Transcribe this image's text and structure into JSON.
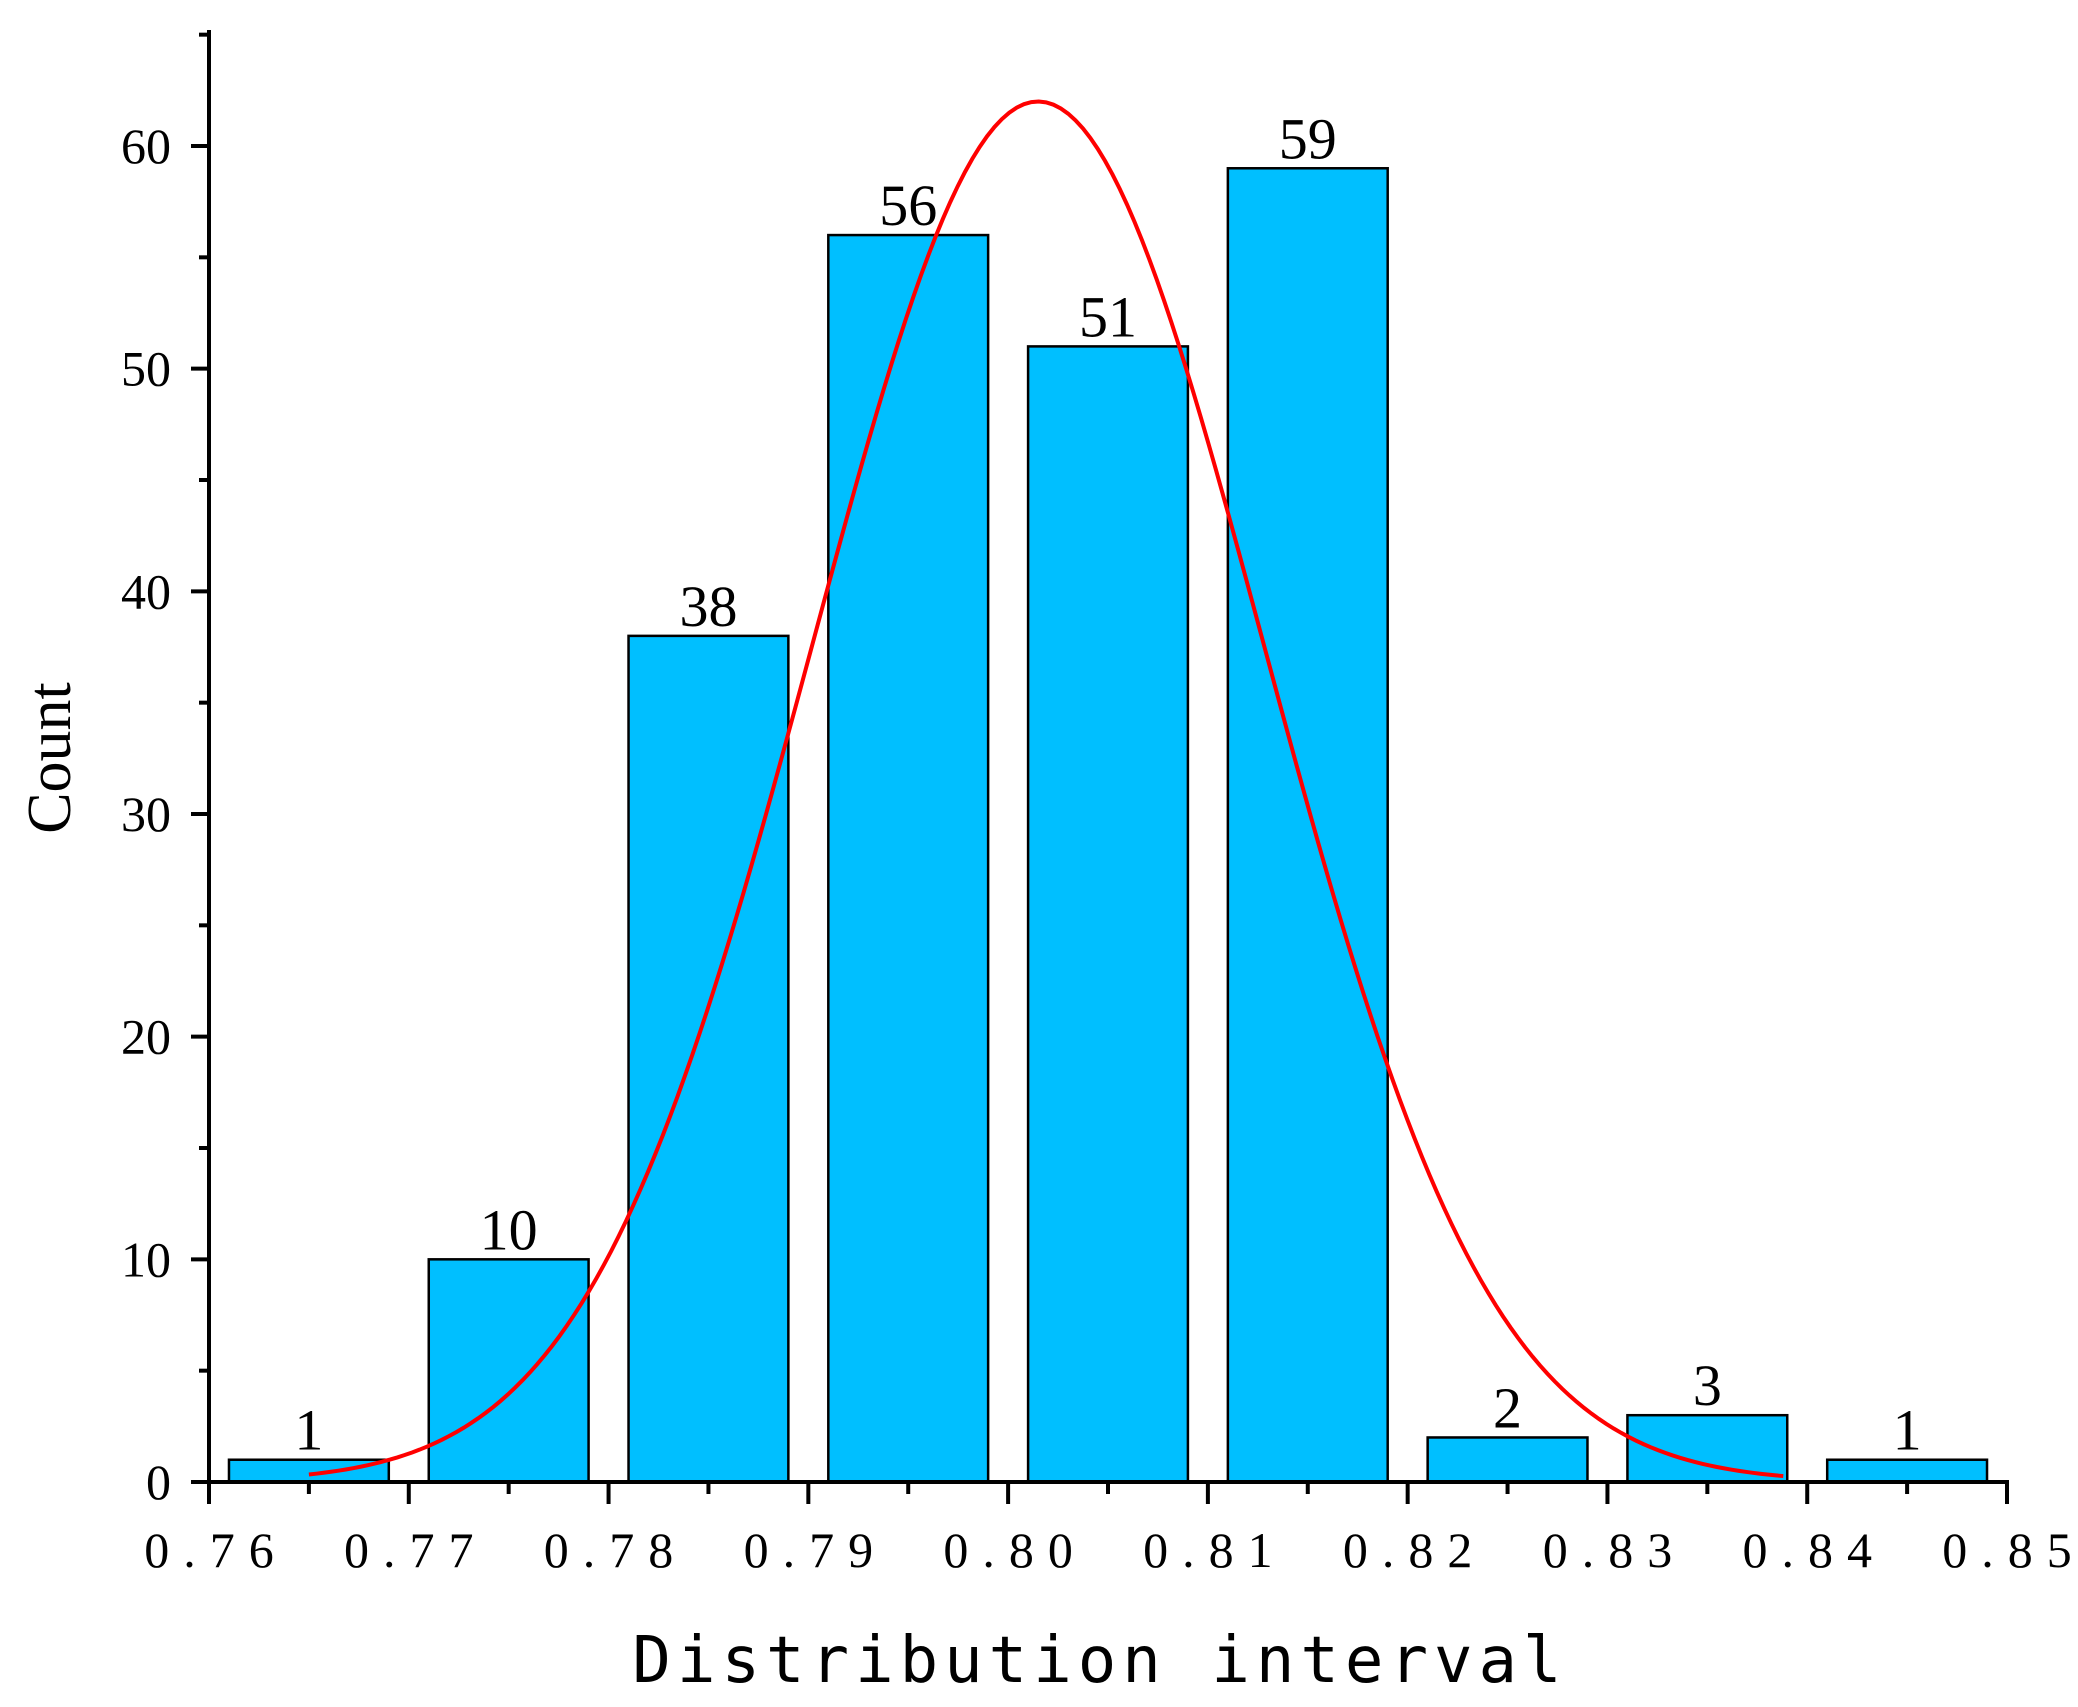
{
  "chart_data": {
    "type": "bar",
    "title": "",
    "xlabel": "Distribution interval",
    "ylabel": "Count",
    "x_ticks": [
      "0.76",
      "0.77",
      "0.78",
      "0.79",
      "0.80",
      "0.81",
      "0.82",
      "0.83",
      "0.84",
      "0.85"
    ],
    "x_tick_values": [
      0.76,
      0.77,
      0.78,
      0.79,
      0.8,
      0.81,
      0.82,
      0.83,
      0.84,
      0.85
    ],
    "y_ticks": [
      "0",
      "10",
      "20",
      "30",
      "40",
      "50",
      "60"
    ],
    "y_tick_values": [
      0,
      10,
      20,
      30,
      40,
      50,
      60
    ],
    "xlim": [
      0.76,
      0.85
    ],
    "ylim": [
      0,
      65
    ],
    "bins": [
      {
        "start": 0.76,
        "end": 0.77,
        "value": 1,
        "label": "1"
      },
      {
        "start": 0.77,
        "end": 0.78,
        "value": 10,
        "label": "10"
      },
      {
        "start": 0.78,
        "end": 0.79,
        "value": 38,
        "label": "38"
      },
      {
        "start": 0.79,
        "end": 0.8,
        "value": 56,
        "label": "56"
      },
      {
        "start": 0.8,
        "end": 0.81,
        "value": 51,
        "label": "51"
      },
      {
        "start": 0.81,
        "end": 0.82,
        "value": 59,
        "label": "59"
      },
      {
        "start": 0.82,
        "end": 0.83,
        "value": 2,
        "label": "2"
      },
      {
        "start": 0.83,
        "end": 0.84,
        "value": 3,
        "label": "3"
      },
      {
        "start": 0.84,
        "end": 0.85,
        "value": 1,
        "label": "1"
      }
    ],
    "bar_width_fraction": 0.8,
    "fit_curve": {
      "type": "normal",
      "peak": 62,
      "mean": 0.8015,
      "sd": 0.0113,
      "x_start": 0.765,
      "x_end": 0.8388
    },
    "colors": {
      "bar_fill": "#00bfff",
      "bar_stroke": "#000000",
      "curve": "#ff0000",
      "axis": "#000000"
    }
  }
}
